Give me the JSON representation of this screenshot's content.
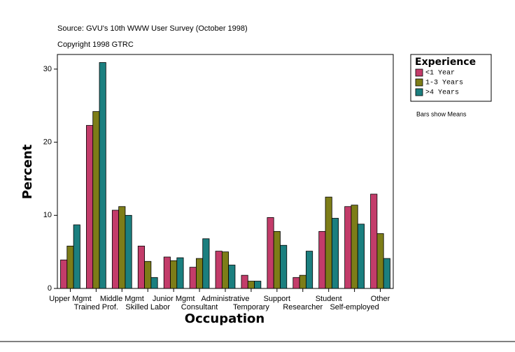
{
  "chart_data": {
    "type": "bar",
    "title": "Source: GVU's 10th WWW User Survey (October 1998)",
    "subtitle": "Copyright 1998 GTRC",
    "x_label": "Occupation",
    "y_label": "Percent",
    "annotation": "Bars show Means",
    "legend_title": "Experience",
    "categories": [
      "Upper Mgmt",
      "Trained Prof.",
      "Middle Mgmt",
      "Skilled Labor",
      "Junior Mgmt",
      "Consultant",
      "Administrative",
      "Temporary",
      "Support",
      "Researcher",
      "Student",
      "Self-employed",
      "Other"
    ],
    "series": [
      {
        "name": "<1 Year",
        "color": "#c33c6a",
        "values": [
          3.9,
          22.3,
          10.7,
          5.8,
          4.3,
          2.9,
          5.1,
          1.8,
          9.7,
          1.5,
          7.8,
          11.2,
          12.9
        ]
      },
      {
        "name": "1-3 Years",
        "color": "#7d7d18",
        "values": [
          5.8,
          24.2,
          11.2,
          3.7,
          3.8,
          4.1,
          5.0,
          1.0,
          7.8,
          1.8,
          12.5,
          11.4,
          7.5
        ]
      },
      {
        "name": ">4 Years",
        "color": "#1b7f7f",
        "values": [
          8.7,
          30.9,
          10.0,
          1.5,
          4.2,
          6.8,
          3.2,
          1.0,
          5.9,
          5.1,
          9.6,
          8.8,
          4.1
        ]
      }
    ],
    "ylim": [
      0,
      32
    ],
    "yticks": [
      0,
      10,
      20,
      30
    ]
  }
}
